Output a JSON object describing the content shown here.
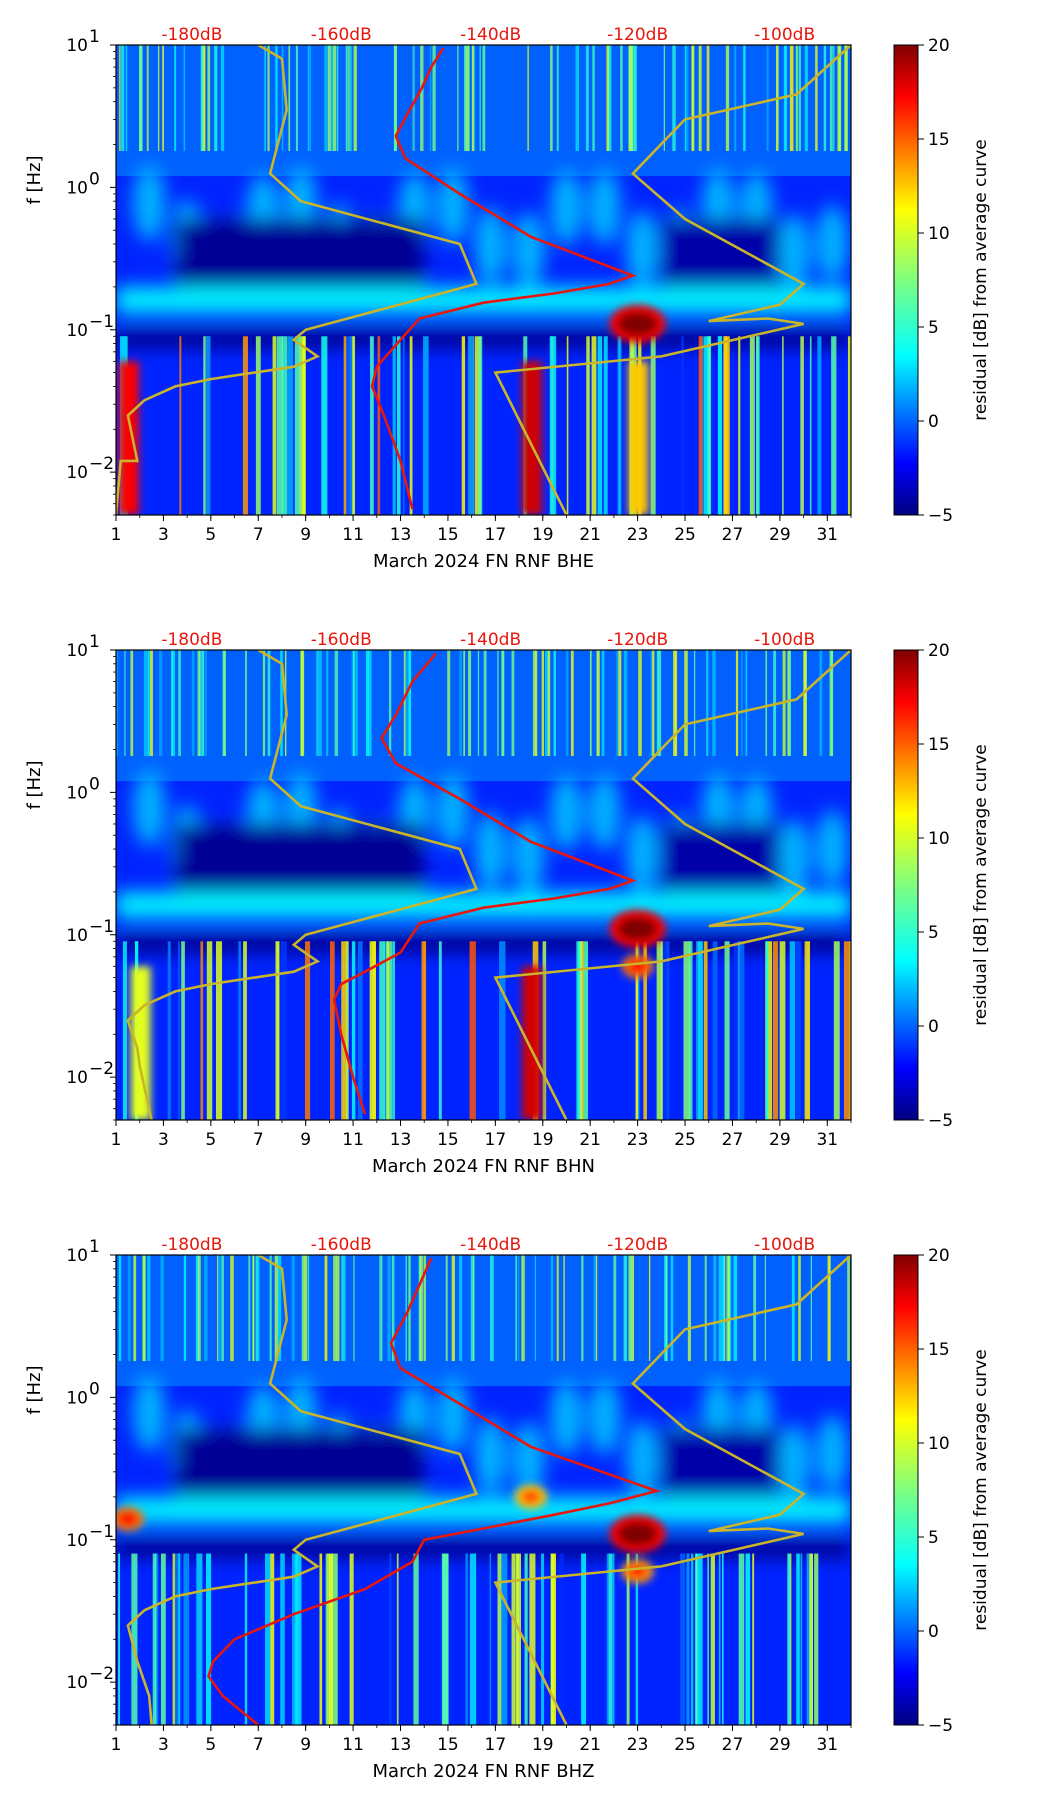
{
  "figure": {
    "colorbar_label": "residual [dB] from average curve",
    "colorbar_ticks": [
      "20",
      "15",
      "10",
      "5",
      "0",
      "−5"
    ],
    "colors": {
      "red_curve": "#e8160c",
      "gold_curve": "#c9b42a",
      "colormap": [
        "#00007f",
        "#0000ff",
        "#007fff",
        "#00ffff",
        "#7fff7f",
        "#ffff00",
        "#ff7f00",
        "#ff0000",
        "#7f0000"
      ]
    }
  },
  "chart_data": [
    {
      "type": "heatmap",
      "title": "",
      "xlabel": "March 2024 FN RNF  BHE",
      "ylabel": "f [Hz]",
      "x_ticks": [
        "1",
        "3",
        "5",
        "7",
        "9",
        "11",
        "13",
        "15",
        "17",
        "19",
        "21",
        "23",
        "25",
        "27",
        "29",
        "31"
      ],
      "y_ticks": [
        {
          "base": "10",
          "exp": "1"
        },
        {
          "base": "10",
          "exp": "0"
        },
        {
          "base": "10",
          "exp": "−1"
        },
        {
          "base": "10",
          "exp": "−2"
        }
      ],
      "top_ticks": [
        "-180dB",
        "-160dB",
        "-140dB",
        "-120dB",
        "-100dB"
      ],
      "xlim": [
        1,
        32
      ],
      "ylim": [
        0.005,
        10
      ],
      "colorbar_range": [
        -5,
        20
      ],
      "red_curve_day": [
        13.5,
        13.0,
        12.3,
        11.8,
        12.0,
        13.0,
        13.8,
        16.5,
        19.5,
        21.8,
        22.8,
        18.5,
        15.5,
        13.2,
        12.8,
        13.3,
        13.9,
        14.3,
        14.8
      ],
      "red_curve_freq": [
        0.0055,
        0.012,
        0.025,
        0.04,
        0.055,
        0.085,
        0.12,
        0.155,
        0.18,
        0.21,
        0.24,
        0.45,
        0.9,
        1.6,
        2.3,
        3.3,
        5.0,
        7.0,
        9.5
      ],
      "gold_curve_day": [
        20.0,
        17.0,
        24.0,
        30.0,
        28.5,
        26.0,
        29.0,
        30.0,
        25.0,
        22.8,
        25.0,
        29.7,
        32.0,
        32.0,
        1.0,
        1.2,
        1.9,
        1.5,
        2.2,
        3.5,
        5.0,
        8.5,
        9.5,
        8.5,
        9.0,
        16.2,
        15.5,
        8.8,
        7.5,
        8.2,
        8.0,
        7.0
      ],
      "gold_curve_freq": [
        0.005,
        0.05,
        0.065,
        0.11,
        0.12,
        0.115,
        0.15,
        0.21,
        0.6,
        1.25,
        3.0,
        4.5,
        10.0,
        10.0,
        0.005,
        0.012,
        0.012,
        0.025,
        0.032,
        0.04,
        0.045,
        0.055,
        0.065,
        0.085,
        0.1,
        0.21,
        0.4,
        0.8,
        1.25,
        3.5,
        8.0,
        10.0
      ],
      "hot_spots": [
        {
          "day": 23.0,
          "freq": 0.11,
          "residual_db": 20
        },
        {
          "day": 18.5,
          "freq": 0.02,
          "residual_db": 18
        },
        {
          "day": 1.5,
          "freq": 0.015,
          "residual_db": 17
        },
        {
          "day": 23.0,
          "freq": 0.02,
          "residual_db": 12
        }
      ]
    },
    {
      "type": "heatmap",
      "title": "",
      "xlabel": "March 2024 FN RNF  BHN",
      "ylabel": "f [Hz]",
      "x_ticks": [
        "1",
        "3",
        "5",
        "7",
        "9",
        "11",
        "13",
        "15",
        "17",
        "19",
        "21",
        "23",
        "25",
        "27",
        "29",
        "31"
      ],
      "y_ticks": [
        {
          "base": "10",
          "exp": "1"
        },
        {
          "base": "10",
          "exp": "0"
        },
        {
          "base": "10",
          "exp": "−1"
        },
        {
          "base": "10",
          "exp": "−2"
        }
      ],
      "top_ticks": [
        "-180dB",
        "-160dB",
        "-140dB",
        "-120dB",
        "-100dB"
      ],
      "xlim": [
        1,
        32
      ],
      "ylim": [
        0.005,
        10
      ],
      "colorbar_range": [
        -5,
        20
      ],
      "red_curve_day": [
        11.5,
        11.0,
        10.5,
        10.2,
        10.5,
        11.5,
        13.0,
        13.8,
        16.5,
        19.5,
        21.8,
        22.8,
        18.5,
        15.5,
        12.8,
        12.2,
        12.8,
        13.5,
        14.5
      ],
      "red_curve_freq": [
        0.0055,
        0.01,
        0.02,
        0.035,
        0.045,
        0.055,
        0.075,
        0.12,
        0.155,
        0.18,
        0.21,
        0.24,
        0.45,
        0.9,
        1.6,
        2.4,
        3.5,
        6.0,
        9.5
      ],
      "gold_curve_day": [
        20.0,
        17.0,
        24.0,
        30.0,
        28.5,
        26.0,
        29.0,
        30.0,
        25.0,
        22.8,
        25.0,
        29.7,
        32.0,
        32.0,
        2.5,
        2.0,
        1.9,
        1.5,
        2.2,
        3.5,
        5.0,
        8.5,
        9.5,
        8.5,
        9.0,
        16.2,
        15.5,
        8.8,
        7.5,
        8.2,
        8.0,
        7.0
      ],
      "gold_curve_freq": [
        0.005,
        0.05,
        0.065,
        0.11,
        0.12,
        0.115,
        0.15,
        0.21,
        0.6,
        1.25,
        3.0,
        4.5,
        10.0,
        10.0,
        0.005,
        0.012,
        0.016,
        0.025,
        0.032,
        0.04,
        0.045,
        0.055,
        0.065,
        0.085,
        0.1,
        0.21,
        0.4,
        0.8,
        1.25,
        3.5,
        8.0,
        10.0
      ],
      "hot_spots": [
        {
          "day": 23.0,
          "freq": 0.11,
          "residual_db": 20
        },
        {
          "day": 18.5,
          "freq": 0.02,
          "residual_db": 18
        },
        {
          "day": 2.0,
          "freq": 0.01,
          "residual_db": 10
        },
        {
          "day": 23.0,
          "freq": 0.06,
          "residual_db": 17
        }
      ]
    },
    {
      "type": "heatmap",
      "title": "",
      "xlabel": "March 2024 FN RNF  BHZ",
      "ylabel": "f [Hz]",
      "x_ticks": [
        "1",
        "3",
        "5",
        "7",
        "9",
        "11",
        "13",
        "15",
        "17",
        "19",
        "21",
        "23",
        "25",
        "27",
        "29",
        "31"
      ],
      "y_ticks": [
        {
          "base": "10",
          "exp": "1"
        },
        {
          "base": "10",
          "exp": "0"
        },
        {
          "base": "10",
          "exp": "−1"
        },
        {
          "base": "10",
          "exp": "−2"
        }
      ],
      "top_ticks": [
        "-180dB",
        "-160dB",
        "-140dB",
        "-120dB",
        "-100dB"
      ],
      "xlim": [
        1,
        32
      ],
      "ylim": [
        0.005,
        10
      ],
      "colorbar_range": [
        -5,
        20
      ],
      "red_curve_day": [
        7.0,
        5.5,
        4.9,
        5.1,
        6.0,
        8.5,
        11.5,
        13.5,
        14.0,
        16.5,
        19.5,
        21.8,
        23.8,
        18.5,
        15.5,
        13.0,
        12.6,
        13.3,
        14.3
      ],
      "red_curve_freq": [
        0.005,
        0.008,
        0.011,
        0.014,
        0.02,
        0.03,
        0.045,
        0.07,
        0.1,
        0.12,
        0.15,
        0.18,
        0.22,
        0.45,
        0.9,
        1.6,
        2.4,
        4.0,
        9.5
      ],
      "gold_curve_day": [
        20.0,
        17.0,
        24.0,
        30.0,
        28.5,
        26.0,
        29.0,
        30.0,
        25.0,
        22.8,
        25.0,
        29.7,
        32.0,
        32.0,
        2.5,
        2.4,
        1.9,
        1.5,
        2.2,
        3.5,
        5.0,
        8.5,
        9.5,
        8.5,
        9.0,
        16.2,
        15.5,
        8.8,
        7.5,
        8.2,
        8.0,
        7.0
      ],
      "gold_curve_freq": [
        0.005,
        0.05,
        0.065,
        0.11,
        0.12,
        0.115,
        0.15,
        0.21,
        0.6,
        1.25,
        3.0,
        4.5,
        10.0,
        10.0,
        0.005,
        0.008,
        0.014,
        0.025,
        0.032,
        0.04,
        0.045,
        0.055,
        0.065,
        0.085,
        0.1,
        0.21,
        0.4,
        0.8,
        1.25,
        3.5,
        8.0,
        10.0
      ],
      "hot_spots": [
        {
          "day": 23.0,
          "freq": 0.11,
          "residual_db": 20
        },
        {
          "day": 18.5,
          "freq": 0.2,
          "residual_db": 15
        },
        {
          "day": 1.5,
          "freq": 0.14,
          "residual_db": 17
        },
        {
          "day": 23.0,
          "freq": 0.06,
          "residual_db": 16
        }
      ]
    }
  ]
}
